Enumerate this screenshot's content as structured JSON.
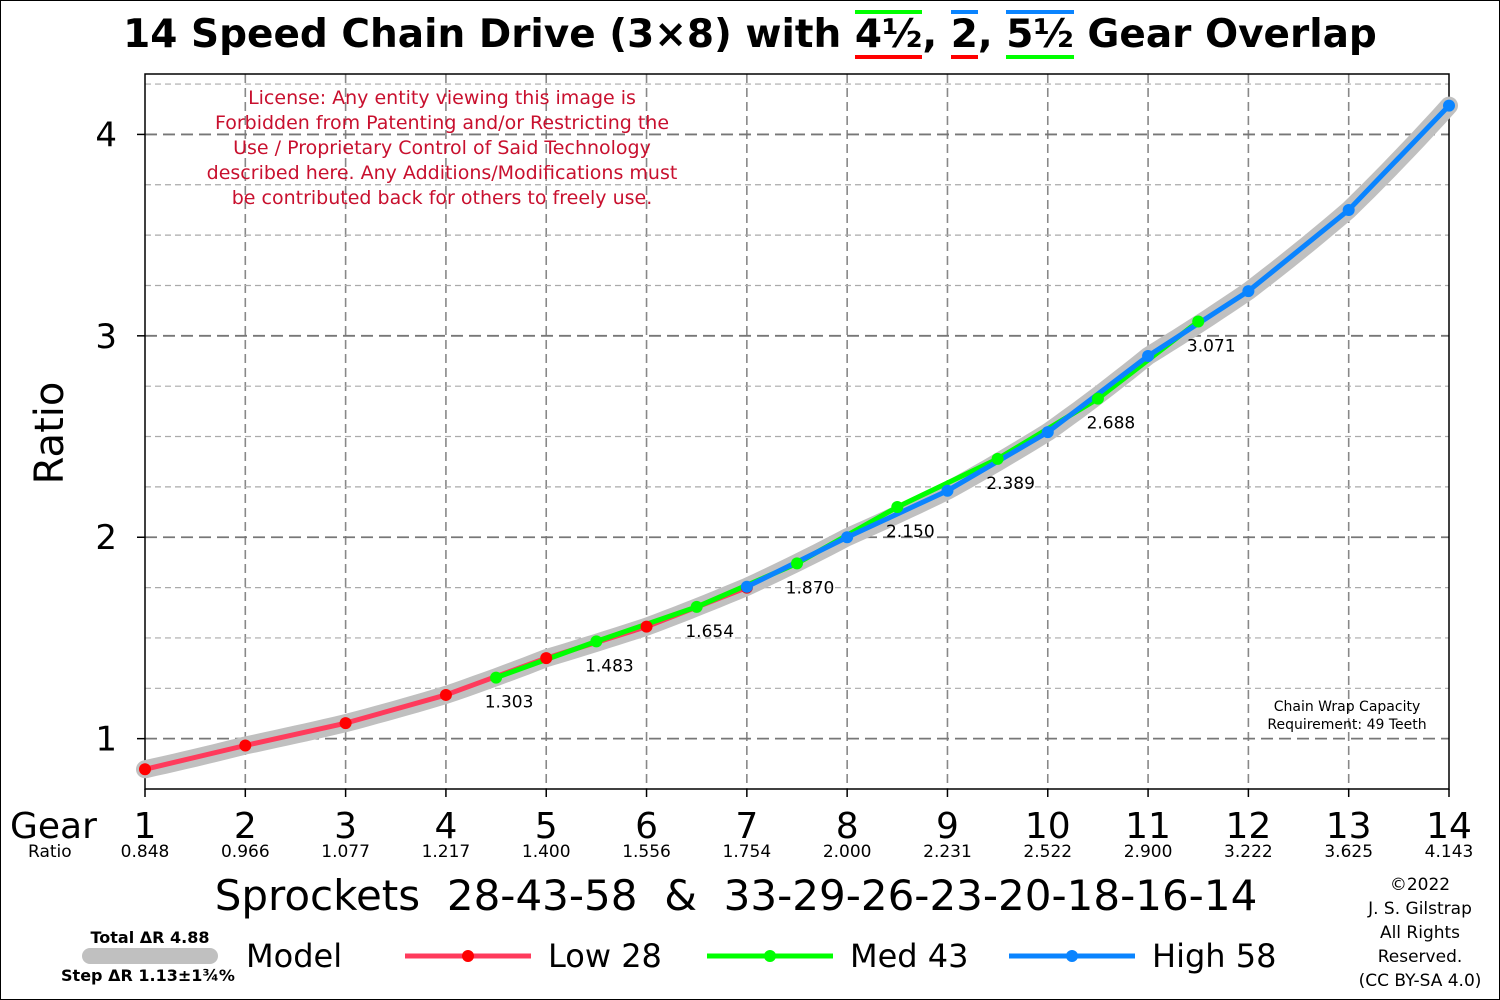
{
  "title": {
    "prefix": "14 Speed Chain Drive (3×8) with ",
    "overlap_1": "4½",
    "sep_1": ", ",
    "overlap_2": "2",
    "sep_2": ", ",
    "overlap_3": "5½",
    "suffix": " Gear Overlap"
  },
  "license": [
    "License: Any entity viewing this image is",
    "Forbidden from Patenting and/or Restricting the",
    "Use / Proprietary Control of Said Technology",
    "described here. Any Additions/Modifications must",
    "be contributed back for others to freely use."
  ],
  "chain_wrap": [
    "Chain Wrap Capacity",
    "Requirement: 49 Teeth"
  ],
  "copyright": [
    "©2022",
    "J. S. Gilstrap",
    "All Rights",
    "Reserved.",
    "(CC BY-SA 4.0)"
  ],
  "chart_data": {
    "type": "line",
    "ylabel": "Ratio",
    "xlabel": "Sprockets  28-43-58  &  33-29-26-23-20-18-16-14",
    "x_row_label": "Gear",
    "ratio_row_label": "Ratio",
    "xlim": [
      1,
      14
    ],
    "ylim": [
      0.75,
      4.3
    ],
    "yticks": [
      1,
      2,
      3,
      4
    ],
    "grid": true,
    "gears": [
      1,
      2,
      3,
      4,
      5,
      6,
      7,
      8,
      9,
      10,
      11,
      12,
      13,
      14
    ],
    "gear_ratios": [
      "0.848",
      "0.966",
      "1.077",
      "1.217",
      "1.400",
      "1.556",
      "1.754",
      "2.000",
      "2.231",
      "2.522",
      "2.900",
      "3.222",
      "3.625",
      "4.143"
    ],
    "model": {
      "name": "Model",
      "total": "Total ΔR 4.88",
      "step": "Step ΔR 1.13±1¾%",
      "color": "#c0c0c0"
    },
    "series": [
      {
        "name": "Low 28",
        "color": "#ff3b5c",
        "dot": "#ff0000",
        "points": [
          [
            1,
            0.848
          ],
          [
            2,
            0.966
          ],
          [
            3,
            1.077
          ],
          [
            4,
            1.217
          ],
          [
            5,
            1.4
          ],
          [
            6,
            1.556
          ],
          [
            7,
            1.75
          ]
        ]
      },
      {
        "name": "Med 43",
        "color": "#00ff00",
        "dot": "#00ff00",
        "points": [
          [
            4.5,
            1.303
          ],
          [
            5.5,
            1.483
          ],
          [
            6.5,
            1.654
          ],
          [
            7.5,
            1.87
          ],
          [
            8.5,
            2.15
          ],
          [
            9.5,
            2.389
          ],
          [
            10.5,
            2.688
          ],
          [
            11.5,
            3.071
          ]
        ]
      },
      {
        "name": "High 58",
        "color": "#0a84ff",
        "dot": "#0a84ff",
        "points": [
          [
            7,
            1.754
          ],
          [
            8,
            2.0
          ],
          [
            9,
            2.231
          ],
          [
            10,
            2.522
          ],
          [
            11,
            2.9
          ],
          [
            12,
            3.222
          ],
          [
            13,
            3.625
          ],
          [
            14,
            4.143
          ]
        ]
      }
    ],
    "annotations": [
      {
        "x": 4.5,
        "y": 1.303,
        "text": "1.303"
      },
      {
        "x": 5.5,
        "y": 1.483,
        "text": "1.483"
      },
      {
        "x": 6.5,
        "y": 1.654,
        "text": "1.654"
      },
      {
        "x": 7.5,
        "y": 1.87,
        "text": "1.870"
      },
      {
        "x": 8.5,
        "y": 2.15,
        "text": "2.150"
      },
      {
        "x": 9.5,
        "y": 2.389,
        "text": "2.389"
      },
      {
        "x": 10.5,
        "y": 2.688,
        "text": "2.688"
      },
      {
        "x": 11.5,
        "y": 3.071,
        "text": "3.071"
      }
    ]
  }
}
